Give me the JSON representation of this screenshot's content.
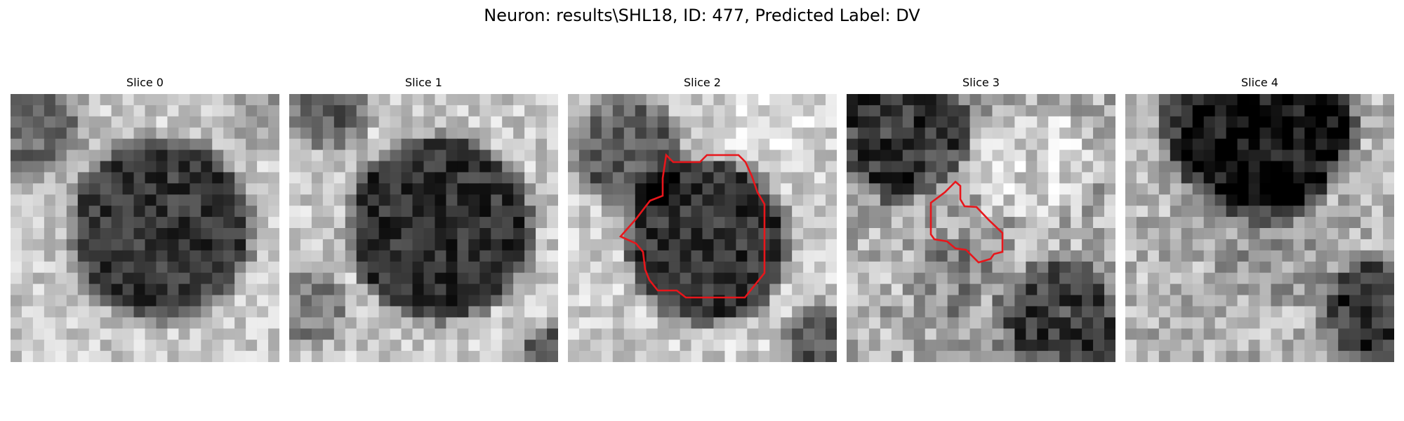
{
  "figure": {
    "title": "Neuron: results\\SHL18, ID: 477, Predicted Label: DV",
    "overlay_color": "#e8161b"
  },
  "panels": [
    {
      "title": "Slice 0",
      "has_contour": false
    },
    {
      "title": "Slice 1",
      "has_contour": false
    },
    {
      "title": "Slice 2",
      "has_contour": true
    },
    {
      "title": "Slice 3",
      "has_contour": true
    },
    {
      "title": "Slice 4",
      "has_contour": false
    }
  ]
}
